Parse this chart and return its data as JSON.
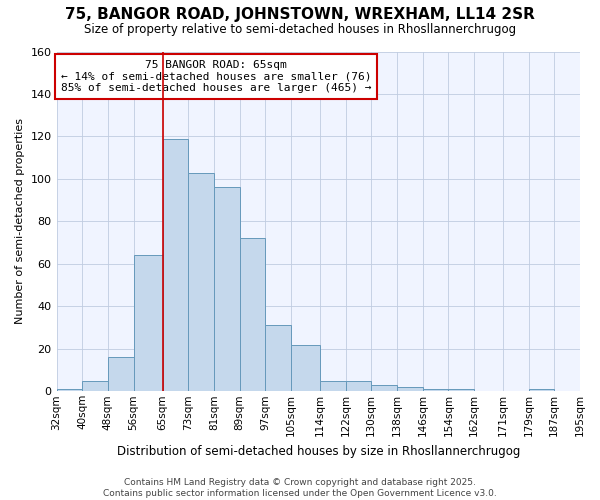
{
  "title": "75, BANGOR ROAD, JOHNSTOWN, WREXHAM, LL14 2SR",
  "subtitle": "Size of property relative to semi-detached houses in Rhosllannerchrugog",
  "xlabel": "Distribution of semi-detached houses by size in Rhosllannerchrugog",
  "ylabel": "Number of semi-detached properties",
  "bin_edges": [
    32,
    40,
    48,
    56,
    65,
    73,
    81,
    89,
    97,
    105,
    114,
    122,
    130,
    138,
    146,
    154,
    162,
    171,
    179,
    187,
    195
  ],
  "bin_labels": [
    "32sqm",
    "40sqm",
    "48sqm",
    "56sqm",
    "65sqm",
    "73sqm",
    "81sqm",
    "89sqm",
    "97sqm",
    "105sqm",
    "114sqm",
    "122sqm",
    "130sqm",
    "138sqm",
    "146sqm",
    "154sqm",
    "162sqm",
    "171sqm",
    "179sqm",
    "187sqm",
    "195sqm"
  ],
  "bar_heights": [
    1,
    5,
    16,
    64,
    119,
    103,
    96,
    72,
    31,
    22,
    5,
    5,
    3,
    2,
    1,
    1,
    0,
    0,
    1,
    0
  ],
  "bar_color": "#c5d8ec",
  "bar_edge_color": "#6699bb",
  "vline_x": 65,
  "vline_color": "#cc0000",
  "annotation_text": "75 BANGOR ROAD: 65sqm\n← 14% of semi-detached houses are smaller (76)\n85% of semi-detached houses are larger (465) →",
  "annotation_box_facecolor": "#ffffff",
  "annotation_box_edgecolor": "#cc0000",
  "ylim": [
    0,
    160
  ],
  "yticks": [
    0,
    20,
    40,
    60,
    80,
    100,
    120,
    140,
    160
  ],
  "footer": "Contains HM Land Registry data © Crown copyright and database right 2025.\nContains public sector information licensed under the Open Government Licence v3.0.",
  "bg_color": "#ffffff",
  "plot_bg_color": "#f0f4ff",
  "grid_color": "#c0cce0"
}
